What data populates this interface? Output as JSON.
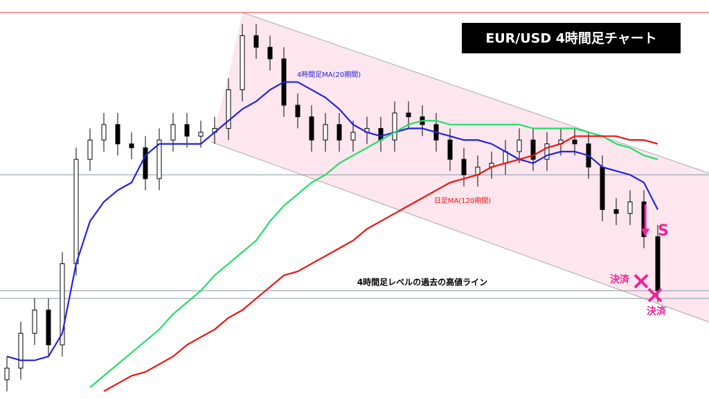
{
  "chart_data": {
    "type": "candlestick",
    "title": "EUR/USD  4時間足チャート",
    "ylim": [
      0,
      100
    ],
    "open": [
      5,
      8,
      17,
      23,
      14,
      35,
      62,
      67,
      71,
      66,
      65,
      57,
      67,
      71,
      68,
      69,
      70,
      80,
      94,
      91,
      88,
      76,
      73,
      67,
      71,
      67,
      69,
      70,
      67,
      74,
      73,
      71,
      67,
      62,
      58,
      60,
      61,
      64,
      67,
      62,
      66,
      67,
      66,
      60,
      49,
      48,
      51,
      42
    ],
    "high": [
      11,
      20,
      26,
      26,
      38,
      65,
      70,
      74,
      74,
      69,
      68,
      70,
      74,
      74,
      72,
      73,
      83,
      97,
      97,
      94,
      91,
      79,
      76,
      74,
      74,
      72,
      73,
      73,
      77,
      77,
      76,
      74,
      70,
      65,
      63,
      64,
      67,
      70,
      70,
      69,
      70,
      70,
      69,
      63,
      52,
      54,
      54,
      45
    ],
    "low": [
      2,
      5,
      14,
      11,
      11,
      32,
      59,
      64,
      63,
      62,
      54,
      54,
      64,
      65,
      65,
      66,
      67,
      77,
      88,
      85,
      73,
      70,
      64,
      64,
      64,
      64,
      66,
      64,
      64,
      70,
      68,
      64,
      59,
      55,
      55,
      57,
      58,
      61,
      59,
      59,
      63,
      63,
      57,
      46,
      45,
      45,
      39,
      25
    ],
    "close": [
      8,
      17,
      23,
      14,
      35,
      62,
      67,
      71,
      66,
      65,
      57,
      67,
      71,
      68,
      69,
      70,
      80,
      94,
      91,
      88,
      76,
      73,
      67,
      71,
      67,
      69,
      70,
      67,
      74,
      73,
      71,
      67,
      62,
      58,
      60,
      61,
      64,
      67,
      62,
      66,
      67,
      66,
      60,
      49,
      48,
      51,
      42,
      28
    ],
    "up_color": "#ffffff",
    "down_color": "#000000",
    "series": [
      {
        "name": "4時間足MA(20期間)",
        "color": "#2222dd",
        "values": [
          11,
          10,
          10,
          11,
          17,
          35,
          46,
          51,
          54,
          56,
          63,
          66,
          66,
          66,
          66,
          69,
          72,
          75,
          77,
          80,
          82,
          82,
          80,
          78,
          75,
          71,
          69,
          68,
          69,
          70,
          70,
          69,
          68,
          67,
          67,
          66,
          64,
          62,
          61,
          63,
          64,
          64,
          63,
          60,
          59,
          58,
          56,
          49
        ]
      },
      {
        "color": "#22dd66",
        "values": [
          null,
          null,
          null,
          null,
          null,
          null,
          3,
          6,
          9,
          12,
          15,
          18,
          22,
          25,
          28,
          32,
          35,
          38,
          41,
          46,
          50,
          53,
          56,
          58,
          61,
          63,
          65,
          67,
          69,
          71,
          72,
          72,
          71,
          71,
          71,
          71,
          71,
          71,
          70,
          70,
          70,
          70,
          69,
          68,
          66,
          65,
          63,
          62
        ]
      },
      {
        "name": "日足MA(120期間)",
        "color": "#ee1111",
        "values": [
          null,
          null,
          null,
          null,
          null,
          null,
          null,
          2,
          4,
          6,
          7,
          9,
          11,
          14,
          16,
          18,
          21,
          23,
          26,
          29,
          32,
          33,
          35,
          37,
          39,
          41,
          44,
          46,
          48,
          50,
          52,
          54,
          56,
          57,
          58,
          60,
          61,
          62,
          63,
          65,
          66,
          68,
          68,
          68,
          68,
          67,
          67,
          66
        ]
      }
    ],
    "hlines": [
      {
        "value": 100,
        "color": "#ee3333"
      },
      {
        "value": 58,
        "color": "#8899aa"
      },
      {
        "value": 28,
        "color": "#8899aa"
      },
      {
        "value": 26,
        "color": "#8899aa"
      }
    ],
    "annotations": {
      "level_line": "4時間足レベルの過去の高値ライン",
      "sell": "S",
      "exit1": "決済",
      "exit2": "決済"
    }
  }
}
